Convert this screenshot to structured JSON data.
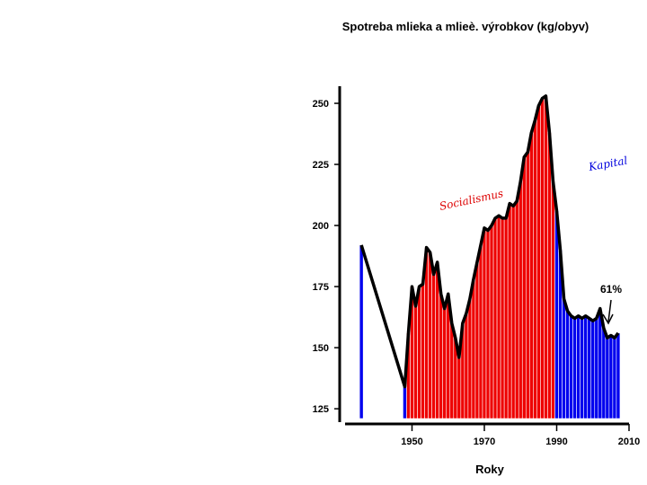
{
  "chart_data": {
    "type": "bar",
    "title": "Spotreba mlieka a mlieè. výrobkov (kg/obyv)",
    "xlabel": "Roky",
    "ylabel": "",
    "xlim": [
      1930,
      2010
    ],
    "ylim": [
      125,
      255
    ],
    "x_ticks": [
      "1950",
      "1970",
      "1990",
      "2010"
    ],
    "y_ticks": [
      "125",
      "150",
      "175",
      "200",
      "225",
      "250"
    ],
    "annotation": "61%",
    "region_labels": [
      {
        "text": "Socialismus",
        "color": "#dd0000"
      },
      {
        "text": "Kapital",
        "color": "#0000dd"
      }
    ],
    "colors": {
      "blue": "#0000ee",
      "red": "#ee0000",
      "line": "#000000"
    },
    "x": [
      1936,
      1948,
      1949,
      1950,
      1951,
      1952,
      1953,
      1954,
      1955,
      1956,
      1957,
      1958,
      1959,
      1960,
      1961,
      1962,
      1963,
      1964,
      1965,
      1966,
      1967,
      1968,
      1969,
      1970,
      1971,
      1972,
      1973,
      1974,
      1975,
      1976,
      1977,
      1978,
      1979,
      1980,
      1981,
      1982,
      1983,
      1984,
      1985,
      1986,
      1987,
      1988,
      1989,
      1990,
      1991,
      1992,
      1993,
      1994,
      1995,
      1996,
      1997,
      1998,
      1999,
      2000,
      2001,
      2002,
      2003,
      2004,
      2005,
      2006,
      2007
    ],
    "values": [
      192,
      134,
      156,
      175,
      167,
      175,
      176,
      191,
      189,
      180,
      185,
      172,
      166,
      172,
      160,
      154,
      146,
      160,
      164,
      170,
      178,
      185,
      192,
      199,
      198,
      200,
      203,
      204,
      203,
      203,
      209,
      208,
      210,
      218,
      228,
      230,
      238,
      243,
      249,
      252,
      253,
      238,
      218,
      206,
      190,
      170,
      165,
      163,
      162,
      163,
      162,
      163,
      162,
      161,
      162,
      166,
      158,
      154,
      155,
      154,
      156
    ],
    "bar_colors": [
      "blue",
      "blue",
      "red",
      "red",
      "red",
      "red",
      "red",
      "red",
      "red",
      "red",
      "red",
      "red",
      "red",
      "red",
      "red",
      "red",
      "red",
      "red",
      "red",
      "red",
      "red",
      "red",
      "red",
      "red",
      "red",
      "red",
      "red",
      "red",
      "red",
      "red",
      "red",
      "red",
      "red",
      "red",
      "red",
      "red",
      "red",
      "red",
      "red",
      "red",
      "red",
      "red",
      "red",
      "blue",
      "blue",
      "blue",
      "blue",
      "blue",
      "blue",
      "blue",
      "blue",
      "blue",
      "blue",
      "blue",
      "blue",
      "blue",
      "blue",
      "blue",
      "blue",
      "blue",
      "blue"
    ],
    "grid": false,
    "legend": "none"
  }
}
